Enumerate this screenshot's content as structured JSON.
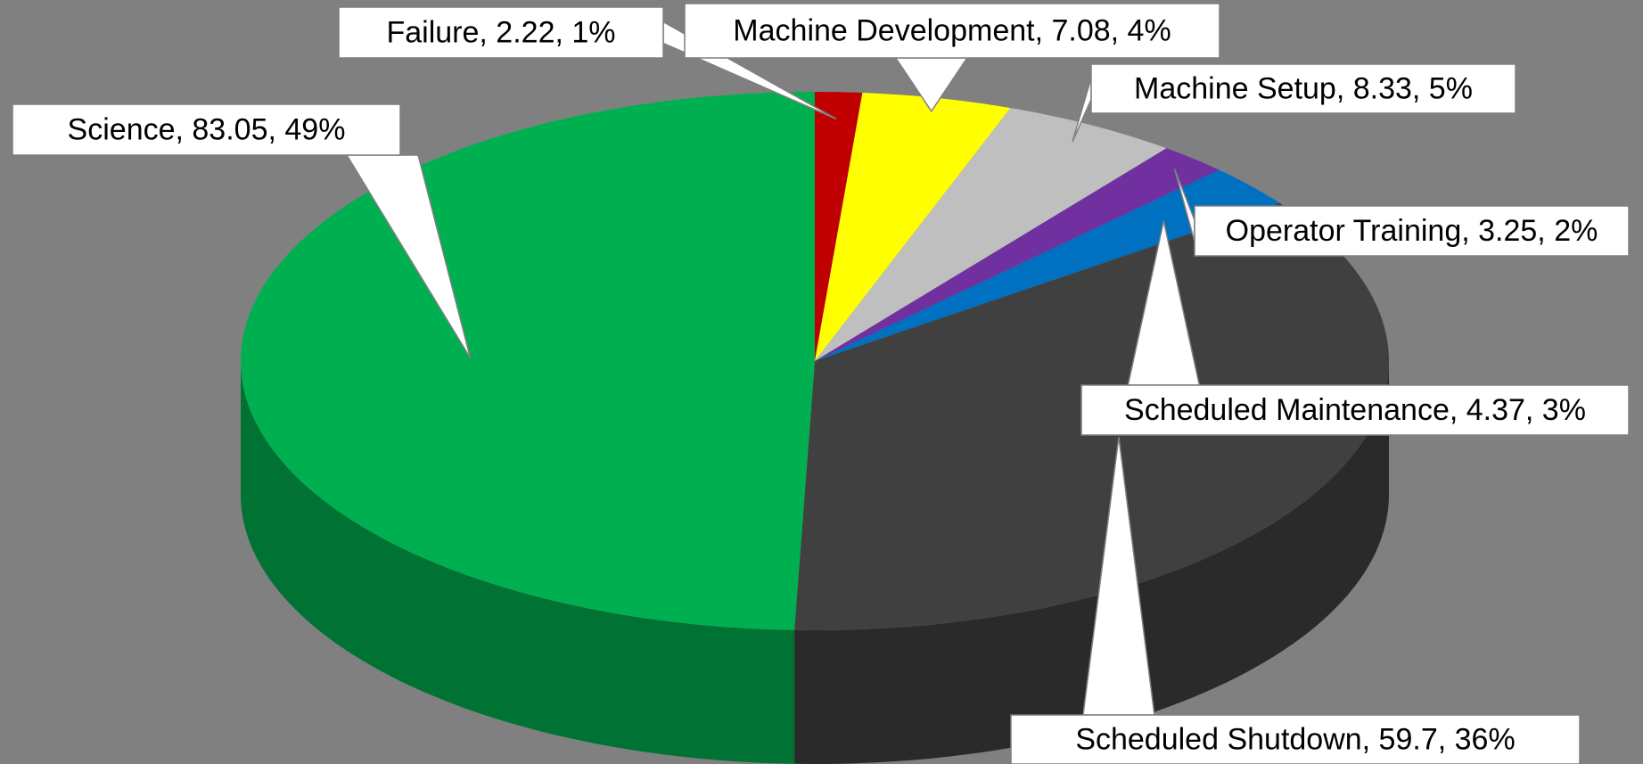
{
  "chart_data": {
    "type": "pie3d",
    "categories": [
      "Failure",
      "Machine Development",
      "Machine Setup",
      "Operator Training",
      "Scheduled Maintenance",
      "Scheduled Shutdown",
      "Science"
    ],
    "values": [
      2.22,
      7.08,
      8.33,
      3.25,
      4.37,
      59.7,
      83.05
    ],
    "value_labels": [
      "Failure, 2.22, 1%",
      "Machine Development, 7.08, 4%",
      "Machine Setup, 8.33, 5%",
      "Operator Training, 3.25, 2%",
      "Scheduled Maintenance, 4.37, 3%",
      "Scheduled Shutdown, 59.7, 36%",
      "Science, 83.05, 49%"
    ],
    "colors": [
      "#c00000",
      "#ffff00",
      "#bfbfbf",
      "#7030a0",
      "#0070c0",
      "#404040",
      "#00b050"
    ]
  }
}
